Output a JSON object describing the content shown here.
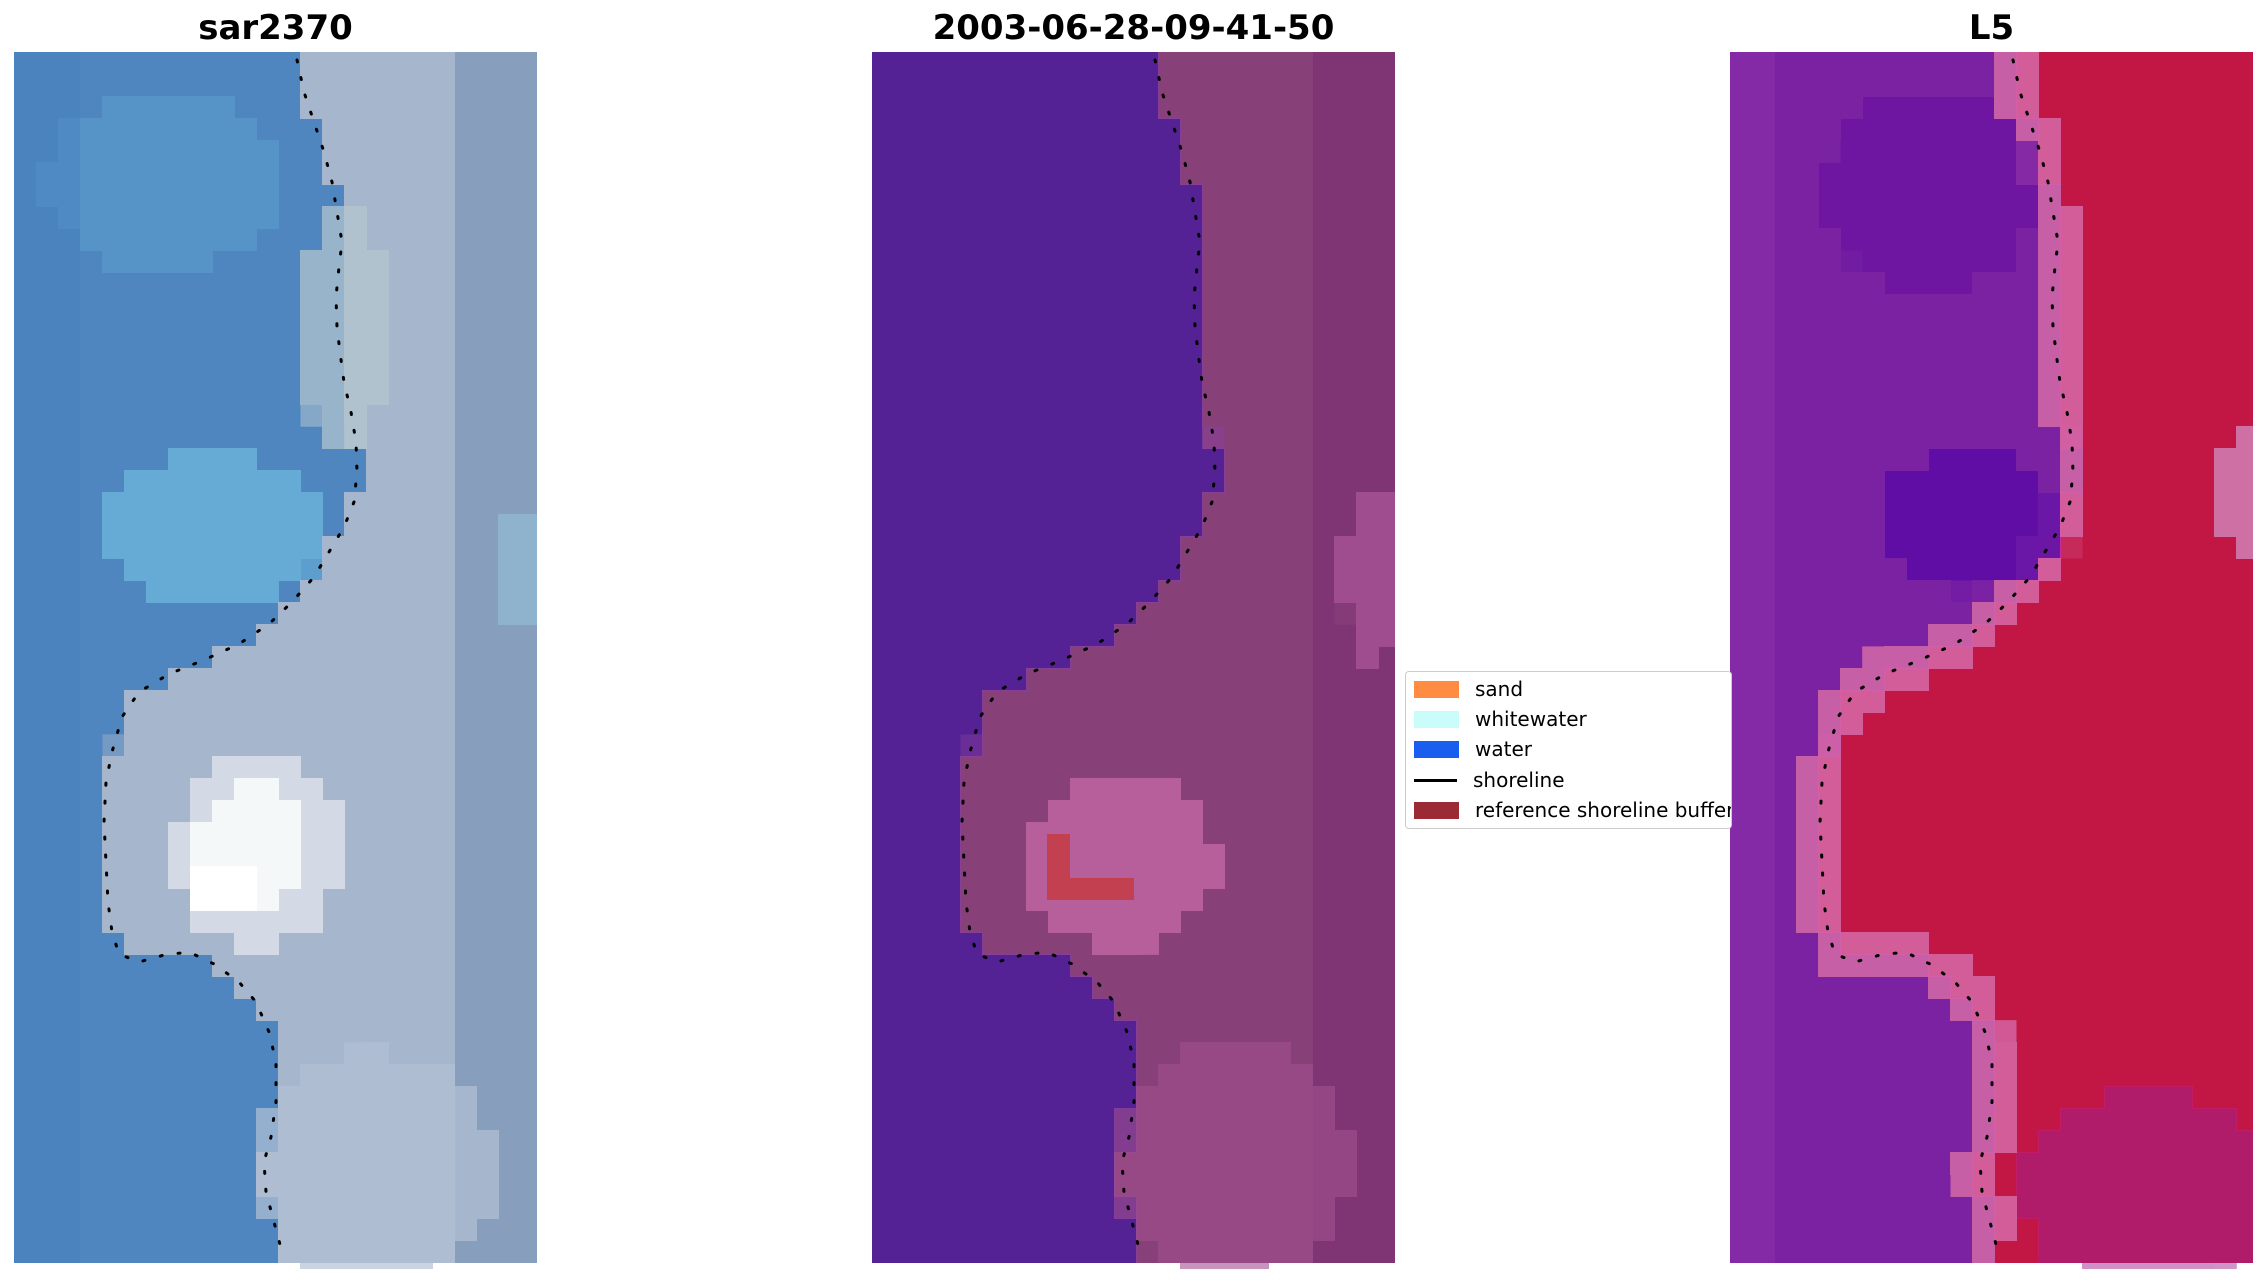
{
  "panels": [
    {
      "title": "sar2370",
      "kind": "rgb"
    },
    {
      "title": "2003-06-28-09-41-50",
      "kind": "classified"
    },
    {
      "title": "L5",
      "kind": "index"
    }
  ],
  "legend": {
    "items": [
      {
        "label": "sand",
        "color": "#ff8c42",
        "type": "patch"
      },
      {
        "label": "whitewater",
        "color": "#c8fdfa",
        "type": "patch"
      },
      {
        "label": "water",
        "color": "#1a5ef0",
        "type": "patch"
      },
      {
        "label": "shoreline",
        "color": "#000000",
        "type": "line"
      },
      {
        "label": "reference shoreline buffer",
        "color": "#9b2a34",
        "type": "patch"
      }
    ]
  },
  "colors": {
    "rgb_sea": "#4f86bf",
    "rgb_land": "#a6b6cc",
    "rgb_white": "#f4f8f8",
    "class_water": "#542096",
    "class_land": "#874078",
    "class_pink": "#c065a0",
    "class_buffer": "#c24050",
    "index_sea": "#7a24a2",
    "index_land": "#c21944",
    "index_deep": "#5a0aa6",
    "shoreline": "#000000"
  }
}
